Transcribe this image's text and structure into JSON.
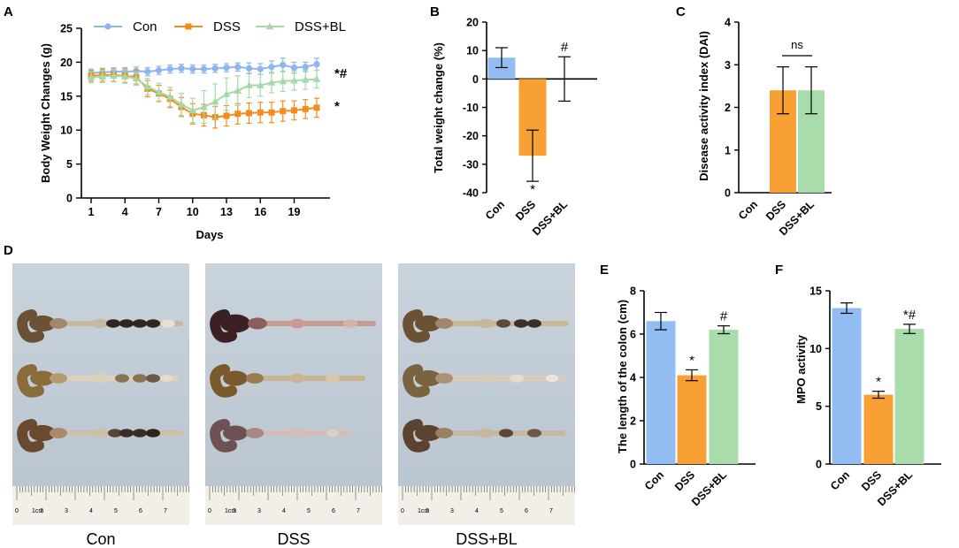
{
  "colors": {
    "con": "#91bdf2",
    "dss": "#f9a035",
    "dssbl": "#a8dcaa",
    "con_line": "#8bb6ee",
    "dss_line": "#f48c1b",
    "dssbl_line": "#a5d9a7"
  },
  "chart_data": [
    {
      "id": "A",
      "panel": "A",
      "type": "line",
      "title": "",
      "xlabel": "Days",
      "ylabel": "Body Weight Changes (g)",
      "xlim": [
        1,
        21
      ],
      "ylim": [
        0,
        25
      ],
      "xticks": [
        "1",
        "4",
        "7",
        "10",
        "13",
        "16",
        "19"
      ],
      "yticks": [
        "0",
        "5",
        "10",
        "15",
        "20",
        "25"
      ],
      "x": [
        1,
        2,
        3,
        4,
        5,
        6,
        7,
        8,
        9,
        10,
        11,
        12,
        13,
        14,
        15,
        16,
        17,
        18,
        19,
        20,
        21
      ],
      "series": [
        {
          "name": "Con",
          "color_key": "con_line",
          "marker": "circle",
          "values": [
            18.4,
            18.5,
            18.6,
            18.6,
            18.7,
            18.6,
            18.8,
            19.0,
            19.1,
            19.0,
            19.0,
            19.1,
            19.2,
            19.3,
            19.1,
            19.0,
            19.3,
            19.6,
            19.2,
            19.3,
            19.7
          ],
          "errors": [
            0.6,
            0.6,
            0.6,
            0.6,
            0.6,
            0.6,
            0.6,
            0.6,
            0.6,
            0.6,
            0.6,
            0.6,
            0.6,
            0.6,
            0.8,
            0.8,
            0.9,
            1.0,
            0.8,
            0.7,
            0.9
          ]
        },
        {
          "name": "DSS",
          "color_key": "dss_line",
          "marker": "square",
          "values": [
            18.0,
            18.1,
            18.1,
            18.0,
            17.8,
            16.1,
            15.4,
            14.6,
            13.4,
            12.4,
            12.2,
            11.9,
            12.1,
            12.4,
            12.5,
            12.6,
            12.6,
            12.8,
            12.9,
            13.1,
            13.3
          ],
          "errors": [
            0.8,
            0.9,
            0.9,
            1.0,
            1.0,
            1.2,
            1.2,
            1.3,
            1.4,
            1.5,
            1.6,
            1.6,
            1.5,
            1.5,
            1.5,
            1.5,
            1.5,
            1.5,
            1.4,
            1.4,
            1.4
          ]
        },
        {
          "name": "DSS+BL",
          "color_key": "dssbl_line",
          "marker": "triangle",
          "values": [
            17.8,
            17.9,
            18.0,
            17.9,
            17.6,
            16.4,
            15.6,
            14.9,
            13.8,
            12.9,
            13.4,
            14.2,
            15.3,
            15.8,
            16.6,
            16.6,
            17.0,
            17.2,
            17.3,
            17.4,
            17.5
          ],
          "errors": [
            0.8,
            0.9,
            0.9,
            1.0,
            1.0,
            1.2,
            1.3,
            1.4,
            1.6,
            1.8,
            2.4,
            2.6,
            2.4,
            2.2,
            1.8,
            1.6,
            1.5,
            1.5,
            1.4,
            1.4,
            1.3
          ]
        }
      ],
      "annotations": [
        {
          "text": "*#",
          "series": "DSS+BL"
        },
        {
          "text": "*",
          "series": "DSS"
        }
      ],
      "legend": "top"
    },
    {
      "id": "B",
      "panel": "B",
      "type": "bar",
      "title": "",
      "xlabel": "",
      "ylabel": "Total weight change (%)",
      "ylim": [
        -40,
        20
      ],
      "yticks": [
        "-40",
        "-30",
        "-20",
        "-10",
        "0",
        "10",
        "20"
      ],
      "categories": [
        "Con",
        "DSS",
        "DSS+BL"
      ],
      "values": [
        7.5,
        -27,
        0
      ],
      "errors": [
        3.5,
        9,
        7.8
      ],
      "bar_color_keys": [
        "con",
        "dss",
        "dssbl"
      ],
      "annotations": [
        {
          "category": "DSS",
          "text": "*",
          "position": "below"
        },
        {
          "category": "DSS+BL",
          "text": "#",
          "position": "above"
        }
      ]
    },
    {
      "id": "C",
      "panel": "C",
      "type": "bar",
      "title": "",
      "xlabel": "",
      "ylabel": "Disease activity index (DAI)",
      "ylim": [
        0,
        4
      ],
      "yticks": [
        "0",
        "1",
        "2",
        "3",
        "4"
      ],
      "categories": [
        "Con",
        "DSS",
        "DSS+BL"
      ],
      "values": [
        0,
        2.4,
        2.4
      ],
      "errors": [
        0,
        0.55,
        0.55
      ],
      "bar_color_keys": [
        "con",
        "dss",
        "dssbl"
      ],
      "annotations": [
        {
          "text": "ns",
          "between": [
            "DSS",
            "DSS+BL"
          ]
        }
      ]
    },
    {
      "id": "E",
      "panel": "E",
      "type": "bar",
      "title": "",
      "xlabel": "",
      "ylabel": "The length of the colon (cm)",
      "ylim": [
        0,
        8
      ],
      "yticks": [
        "0",
        "2",
        "4",
        "6",
        "8"
      ],
      "categories": [
        "Con",
        "DSS",
        "DSS+BL"
      ],
      "values": [
        6.6,
        4.1,
        6.2
      ],
      "errors": [
        0.4,
        0.25,
        0.18
      ],
      "bar_color_keys": [
        "con",
        "dss",
        "dssbl"
      ],
      "annotations": [
        {
          "category": "DSS",
          "text": "*",
          "position": "above"
        },
        {
          "category": "DSS+BL",
          "text": "#",
          "position": "above"
        }
      ]
    },
    {
      "id": "F",
      "panel": "F",
      "type": "bar",
      "title": "",
      "xlabel": "",
      "ylabel": "MPO activity",
      "ylim": [
        0,
        15
      ],
      "yticks": [
        "0",
        "5",
        "10",
        "15"
      ],
      "categories": [
        "Con",
        "DSS",
        "DSS+BL"
      ],
      "values": [
        13.5,
        6.0,
        11.7
      ],
      "errors": [
        0.45,
        0.3,
        0.4
      ],
      "bar_color_keys": [
        "con",
        "dss",
        "dssbl"
      ],
      "annotations": [
        {
          "category": "DSS",
          "text": "*",
          "position": "above"
        },
        {
          "category": "DSS+BL",
          "text": "*#",
          "position": "above"
        }
      ]
    }
  ],
  "panel_d": {
    "letter": "D",
    "photos": [
      {
        "caption": "Con"
      },
      {
        "caption": "DSS"
      },
      {
        "caption": "DSS+BL"
      }
    ],
    "ruler_unit": "1cm",
    "ruler_numbers": [
      "0",
      "2",
      "3",
      "4",
      "5",
      "6",
      "7"
    ]
  }
}
